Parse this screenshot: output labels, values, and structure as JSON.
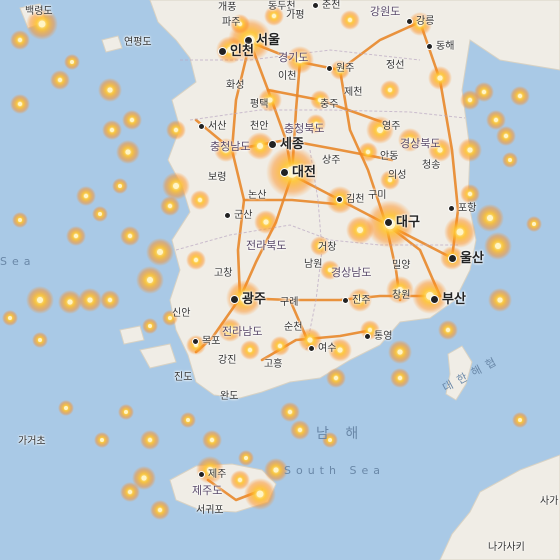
{
  "colors": {
    "sea": "#a9c9e6",
    "land": "#f0ede6",
    "road": "#e8872a",
    "heat_core": "#fff6c8",
    "heat_mid": "#ffc530",
    "heat_edge": "#ff8a18"
  },
  "labels": {
    "seoul": "서울",
    "incheon": "인천",
    "gangwon": "강원도",
    "gyeonggi": "경기도",
    "chungbuk": "충청북도",
    "chungnam": "충청남도",
    "gyeongbuk": "경상북도",
    "gyeongnam": "경상남도",
    "jeonbuk": "전라북도",
    "jeonnam": "전라남도",
    "jeju_do": "제주도",
    "sejong": "세종",
    "daejeon": "대전",
    "daegu": "대구",
    "ulsan": "울산",
    "busan": "부산",
    "gwangju": "광주",
    "paju": "파주",
    "gaepung": "개풍",
    "dongducheon": "동두천",
    "gapyeong": "가평",
    "chuncheon": "춘천",
    "gangneung": "강릉",
    "donghae": "동해",
    "wonju": "원주",
    "jeongseon": "정선",
    "icheon": "이천",
    "hwaseong": "화성",
    "pyeongtaek": "평택",
    "chungju": "충주",
    "jecheon": "제천",
    "yeongju": "영주",
    "cheonan": "천안",
    "seosan": "서산",
    "boryeong": "보령",
    "gunsan": "군산",
    "nonsan": "논산",
    "sangju": "상주",
    "andong": "안동",
    "cheongsong": "청송",
    "uiseong": "의성",
    "gimcheon": "김천",
    "gumi": "구미",
    "pohang": "포항",
    "gochang": "고창",
    "namwon": "남원",
    "geochang": "거창",
    "hapcheon": "합천",
    "miryang": "밀양",
    "changwon": "창원",
    "jinju": "진주",
    "gurye": "구례",
    "suncheon": "순천",
    "yeosu": "여수",
    "tongyeong": "통영",
    "goheung": "고흥",
    "gangjin": "강진",
    "mokpo": "목포",
    "sinan": "신안",
    "jindo": "진도",
    "wando": "완도",
    "gageo": "가거초",
    "jeju": "제주",
    "seogwipo": "서귀포",
    "yeonpyeong": "연평도",
    "baengnyeong": "백령도",
    "nagasaki": "나가사키",
    "gagi": "사가",
    "yellow_sea_frag": "Sea",
    "south_sea": "남  해",
    "south_sea_en": "South  Sea",
    "korea_strait": "대한해협"
  }
}
